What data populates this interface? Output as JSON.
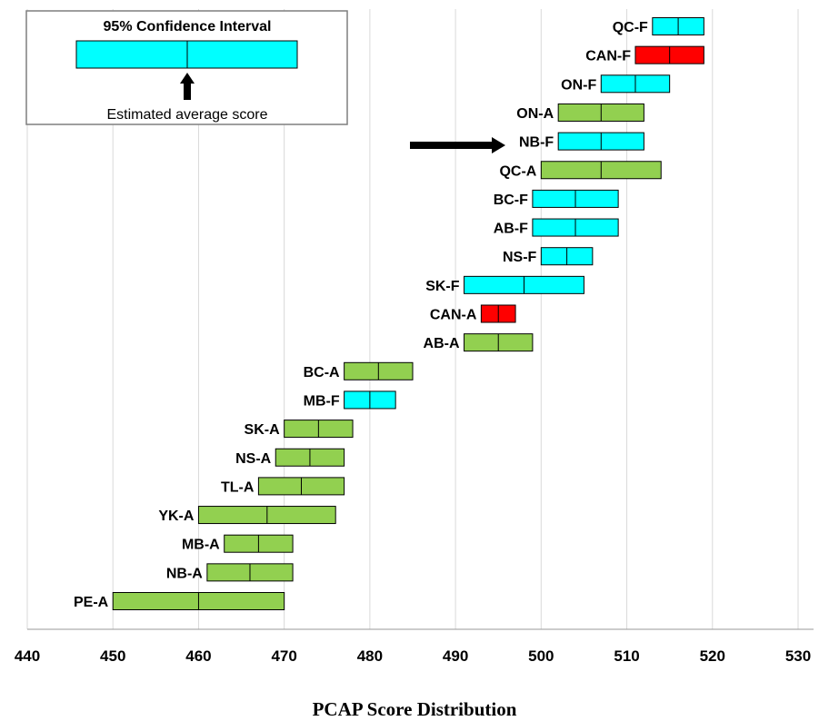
{
  "chart_data": {
    "type": "bar",
    "xlabel": "PCAP Score Distribution",
    "xlim": [
      440,
      530
    ],
    "xticks": [
      440,
      450,
      460,
      470,
      480,
      490,
      500,
      510,
      520,
      530
    ],
    "grid": true,
    "legend": {
      "title": "95% Confidence Interval",
      "caption": "Estimated average score",
      "placement": "top-left"
    },
    "colors": {
      "anglophone": "#92D050",
      "francophone": "#00FFFF",
      "canada": "#FF0000"
    },
    "highlight": "NB-F",
    "categories": [
      "QC-F",
      "CAN-F",
      "ON-F",
      "ON-A",
      "NB-F",
      "QC-A",
      "BC-F",
      "AB-F",
      "NS-F",
      "SK-F",
      "CAN-A",
      "AB-A",
      "BC-A",
      "MB-F",
      "SK-A",
      "NS-A",
      "TL-A",
      "YK-A",
      "MB-A",
      "NB-A",
      "PE-A"
    ],
    "series": [
      {
        "label": "QC-F",
        "low": 513,
        "mean": 516,
        "high": 519,
        "group": "francophone"
      },
      {
        "label": "CAN-F",
        "low": 511,
        "mean": 515,
        "high": 519,
        "group": "canada"
      },
      {
        "label": "ON-F",
        "low": 507,
        "mean": 511,
        "high": 515,
        "group": "francophone"
      },
      {
        "label": "ON-A",
        "low": 502,
        "mean": 507,
        "high": 512,
        "group": "anglophone"
      },
      {
        "label": "NB-F",
        "low": 502,
        "mean": 507,
        "high": 512,
        "group": "francophone"
      },
      {
        "label": "QC-A",
        "low": 500,
        "mean": 507,
        "high": 514,
        "group": "anglophone"
      },
      {
        "label": "BC-F",
        "low": 499,
        "mean": 504,
        "high": 509,
        "group": "francophone"
      },
      {
        "label": "AB-F",
        "low": 499,
        "mean": 504,
        "high": 509,
        "group": "francophone"
      },
      {
        "label": "NS-F",
        "low": 500,
        "mean": 503,
        "high": 506,
        "group": "francophone"
      },
      {
        "label": "SK-F",
        "low": 491,
        "mean": 498,
        "high": 505,
        "group": "francophone"
      },
      {
        "label": "CAN-A",
        "low": 493,
        "mean": 495,
        "high": 497,
        "group": "canada"
      },
      {
        "label": "AB-A",
        "low": 491,
        "mean": 495,
        "high": 499,
        "group": "anglophone"
      },
      {
        "label": "BC-A",
        "low": 477,
        "mean": 481,
        "high": 485,
        "group": "anglophone"
      },
      {
        "label": "MB-F",
        "low": 477,
        "mean": 480,
        "high": 483,
        "group": "francophone"
      },
      {
        "label": "SK-A",
        "low": 470,
        "mean": 474,
        "high": 478,
        "group": "anglophone"
      },
      {
        "label": "NS-A",
        "low": 469,
        "mean": 473,
        "high": 477,
        "group": "anglophone"
      },
      {
        "label": "TL-A",
        "low": 467,
        "mean": 472,
        "high": 477,
        "group": "anglophone"
      },
      {
        "label": "YK-A",
        "low": 460,
        "mean": 468,
        "high": 476,
        "group": "anglophone"
      },
      {
        "label": "MB-A",
        "low": 463,
        "mean": 467,
        "high": 471,
        "group": "anglophone"
      },
      {
        "label": "NB-A",
        "low": 461,
        "mean": 466,
        "high": 471,
        "group": "anglophone"
      },
      {
        "label": "PE-A",
        "low": 450,
        "mean": 460,
        "high": 470,
        "group": "anglophone"
      }
    ]
  }
}
